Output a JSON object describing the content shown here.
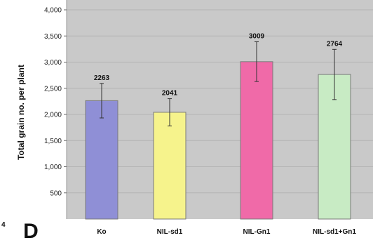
{
  "chart_data": {
    "type": "bar",
    "panel_label": "D",
    "ylabel": "Total grain no. per plant",
    "xlabel": "",
    "ylim": [
      0,
      4000
    ],
    "yticks": [
      "500",
      "1,000",
      "1,500",
      "2,000",
      "2,500",
      "3,000",
      "3,500",
      "4,000"
    ],
    "grid": true,
    "error_bars": true,
    "categories": [
      "Ko",
      "NIL-sd1",
      "NIL-Gn1",
      "NIL-sd1+Gn1"
    ],
    "category_display": [
      "Ko",
      "NIL-sd1",
      "NIL-Gn1",
      "NIL-sd1+Gn1"
    ],
    "values": [
      2263,
      2041,
      3009,
      2764
    ],
    "value_labels": [
      "2263",
      "2041",
      "3009",
      "2764"
    ],
    "errors": [
      330,
      260,
      380,
      480
    ],
    "colors": [
      "#8f8fd6",
      "#f6f38c",
      "#f06aa8",
      "#c8ebc4"
    ],
    "background": "#c9c9c9",
    "left_panel_tick_fragment": "4"
  }
}
